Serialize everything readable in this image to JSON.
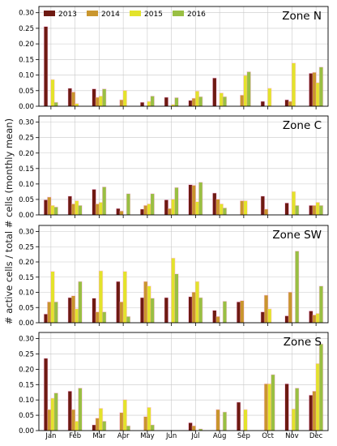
{
  "figure": {
    "ylabel": "# active cells / total # cells (monthly mean)",
    "legend": {
      "placement": "top-left",
      "entries": [
        "2013",
        "2014",
        "2015",
        "2016"
      ]
    },
    "colors": {
      "2013": "#6e1a12",
      "2014": "#c9962e",
      "2015": "#e3e32b",
      "2016": "#99bf43",
      "highlight": "#ff8fd8",
      "grid": "#c8c8c8"
    }
  },
  "chart_data": [
    {
      "type": "bar",
      "title": "Zone N",
      "categories": [
        "Jan",
        "Feb",
        "Mar",
        "Apr",
        "May",
        "Jun",
        "Jul",
        "Aug",
        "Sep",
        "Oct",
        "Nov",
        "Dec"
      ],
      "xlabel": "",
      "ylabel": "# active cells / total # cells (monthly mean)",
      "ylim": [
        0,
        0.32
      ],
      "yticks": [
        "0.00",
        "0.05",
        "0.10",
        "0.15",
        "0.20",
        "0.25",
        "0.30"
      ],
      "show_xticklabels": false,
      "grid": true,
      "series": [
        {
          "name": "2013",
          "values": [
            0.255,
            0.057,
            0.055,
            0.0,
            0.012,
            0.028,
            0.018,
            0.09,
            0.0,
            0.015,
            0.02,
            0.105
          ]
        },
        {
          "name": "2014",
          "values": [
            0.0,
            0.045,
            0.028,
            0.02,
            0.0,
            0.0,
            0.025,
            0.0,
            0.035,
            0.0,
            0.015,
            0.108
          ]
        },
        {
          "name": "2015",
          "values": [
            0.085,
            0.008,
            0.032,
            0.05,
            0.015,
            0.005,
            0.048,
            0.042,
            0.098,
            0.057,
            0.138,
            0.075
          ]
        },
        {
          "name": "2016",
          "values": [
            0.012,
            0.0,
            0.055,
            0.0,
            0.032,
            0.027,
            0.03,
            0.03,
            0.11,
            0.0,
            0.0,
            0.125
          ]
        }
      ]
    },
    {
      "type": "bar",
      "title": "Zone C",
      "categories": [
        "Jan",
        "Feb",
        "Mar",
        "Apr",
        "May",
        "Jun",
        "Jul",
        "Aug",
        "Sep",
        "Oct",
        "Nov",
        "Dec"
      ],
      "xlabel": "",
      "ylabel": "# active cells / total # cells (monthly mean)",
      "ylim": [
        0,
        0.32
      ],
      "yticks": [
        "0.00",
        "0.05",
        "0.10",
        "0.15",
        "0.20",
        "0.25",
        "0.30"
      ],
      "show_xticklabels": false,
      "grid": true,
      "series": [
        {
          "name": "2013",
          "values": [
            0.048,
            0.06,
            0.082,
            0.02,
            0.018,
            0.048,
            0.097,
            0.07,
            0.0,
            0.06,
            0.038,
            0.03
          ]
        },
        {
          "name": "2014",
          "values": [
            0.057,
            0.035,
            0.035,
            0.012,
            0.03,
            0.02,
            0.095,
            0.05,
            0.045,
            0.018,
            0.0,
            0.03
          ]
        },
        {
          "name": "2015",
          "values": [
            0.03,
            0.045,
            0.04,
            0.0,
            0.035,
            0.05,
            0.042,
            0.035,
            0.045,
            0.0,
            0.075,
            0.04
          ]
        },
        {
          "name": "2016",
          "values": [
            0.025,
            0.03,
            0.09,
            0.068,
            0.068,
            0.088,
            0.105,
            0.022,
            0.0,
            0.0,
            0.03,
            0.03
          ]
        }
      ]
    },
    {
      "type": "bar",
      "title": "Zone SW",
      "categories": [
        "Jan",
        "Feb",
        "Mar",
        "Apr",
        "May",
        "Jun",
        "Jul",
        "Aug",
        "Sep",
        "Oct",
        "Nov",
        "Dec"
      ],
      "xlabel": "",
      "ylabel": "# active cells / total # cells (monthly mean)",
      "ylim": [
        0,
        0.32
      ],
      "yticks": [
        "0.00",
        "0.05",
        "0.10",
        "0.15",
        "0.20",
        "0.25",
        "0.30"
      ],
      "show_xticklabels": false,
      "grid": true,
      "series": [
        {
          "name": "2013",
          "values": [
            0.028,
            0.082,
            0.08,
            0.135,
            0.082,
            0.082,
            0.085,
            0.04,
            0.068,
            0.035,
            0.022,
            0.038
          ]
        },
        {
          "name": "2014",
          "values": [
            0.068,
            0.088,
            0.035,
            0.068,
            0.135,
            0.0,
            0.1,
            0.02,
            0.072,
            0.09,
            0.1,
            0.025
          ]
        },
        {
          "name": "2015",
          "values": [
            0.168,
            0.045,
            0.17,
            0.168,
            0.12,
            0.212,
            0.135,
            0.0,
            0.0,
            0.045,
            0.0,
            0.03
          ]
        },
        {
          "name": "2016",
          "values": [
            0.068,
            0.135,
            0.035,
            0.02,
            0.08,
            0.16,
            0.082,
            0.07,
            0.0,
            0.0,
            0.235,
            0.12
          ]
        }
      ]
    },
    {
      "type": "bar",
      "title": "Zone S",
      "categories": [
        "Jan",
        "Feb",
        "Mar",
        "Apr",
        "May",
        "Jun",
        "Jul",
        "Aug",
        "Sep",
        "Oct",
        "Nov",
        "Dec"
      ],
      "xlabel": "",
      "ylabel": "# active cells / total # cells (monthly mean)",
      "ylim": [
        0,
        0.32
      ],
      "yticks": [
        "0.00",
        "0.05",
        "0.10",
        "0.15",
        "0.20",
        "0.25",
        "0.30"
      ],
      "show_xticklabels": true,
      "grid": true,
      "series": [
        {
          "name": "2013",
          "values": [
            0.235,
            0.128,
            0.018,
            0.0,
            0.0,
            0.0,
            0.025,
            0.0,
            0.092,
            0.0,
            0.152,
            0.115
          ]
        },
        {
          "name": "2014",
          "values": [
            0.068,
            0.068,
            0.04,
            0.058,
            0.045,
            0.0,
            0.015,
            0.068,
            0.0,
            0.152,
            0.0,
            0.128
          ]
        },
        {
          "name": "2015",
          "values": [
            0.105,
            0.03,
            0.072,
            0.1,
            0.075,
            0.0,
            0.0,
            0.0,
            0.068,
            0.152,
            0.07,
            0.218
          ]
        },
        {
          "name": "2016",
          "values": [
            0.122,
            0.138,
            0.03,
            0.015,
            0.018,
            0.0,
            0.005,
            0.06,
            0.0,
            0.182,
            0.138,
            0.282
          ]
        }
      ]
    }
  ]
}
